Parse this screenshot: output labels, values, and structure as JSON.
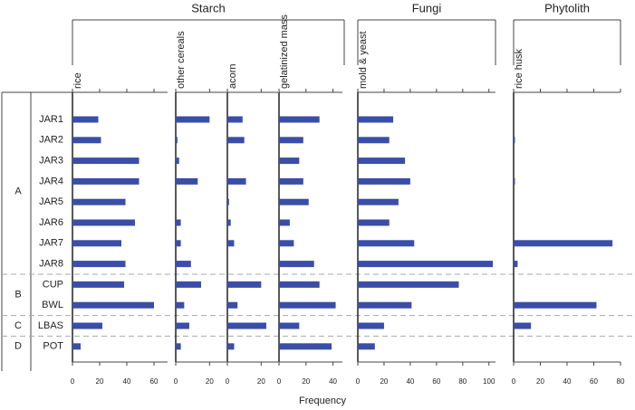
{
  "chart_data": {
    "type": "bar",
    "orientation": "horizontal",
    "color": "#3a4ea8",
    "xlabel": "Frequency",
    "row_groups": [
      {
        "name": "A",
        "categories": [
          "JAR1",
          "JAR2",
          "JAR3",
          "JAR4",
          "JAR5",
          "JAR6",
          "JAR7",
          "JAR8"
        ]
      },
      {
        "name": "B",
        "categories": [
          "CUP",
          "BWL"
        ]
      },
      {
        "name": "C",
        "categories": [
          "LBAS"
        ]
      },
      {
        "name": "D",
        "categories": [
          "POT"
        ]
      }
    ],
    "groups": [
      {
        "name": "Starch",
        "panels": [
          {
            "name": "rice",
            "xlim": [
              0,
              70
            ],
            "xticks": [
              0,
              20,
              40,
              60
            ],
            "values": [
              19,
              21,
              49,
              49,
              39,
              46,
              36,
              39,
              38,
              60,
              22,
              6
            ]
          },
          {
            "name": "other cereals",
            "xlim": [
              0,
              30
            ],
            "xticks": [
              0,
              20
            ],
            "values": [
              20,
              1,
              2,
              13,
              0,
              3,
              3,
              9,
              15,
              5,
              8,
              3
            ]
          },
          {
            "name": "acorn",
            "xlim": [
              0,
              30
            ],
            "xticks": [
              0,
              20
            ],
            "values": [
              9,
              10,
              0,
              11,
              1,
              2,
              4,
              0,
              20,
              6,
              23,
              4
            ]
          },
          {
            "name": "gelatinized mass",
            "xlim": [
              0,
              47
            ],
            "xticks": [
              0,
              20,
              40
            ],
            "values": [
              30,
              18,
              15,
              18,
              22,
              8,
              11,
              26,
              30,
              42,
              15,
              39
            ]
          }
        ]
      },
      {
        "name": "Fungi",
        "panels": [
          {
            "name": "mold & yeast",
            "xlim": [
              0,
              105
            ],
            "xticks": [
              0,
              20,
              40,
              60,
              80,
              100
            ],
            "values": [
              27,
              24,
              36,
              40,
              31,
              24,
              43,
              103,
              77,
              41,
              20,
              13
            ]
          }
        ]
      },
      {
        "name": "Phytolith",
        "panels": [
          {
            "name": "rice husk",
            "xlim": [
              0,
              80
            ],
            "xticks": [
              0,
              20,
              40,
              60,
              80
            ],
            "values": [
              0,
              1,
              0,
              1,
              0,
              0,
              74,
              3,
              0,
              62,
              13,
              0
            ]
          }
        ]
      }
    ]
  }
}
